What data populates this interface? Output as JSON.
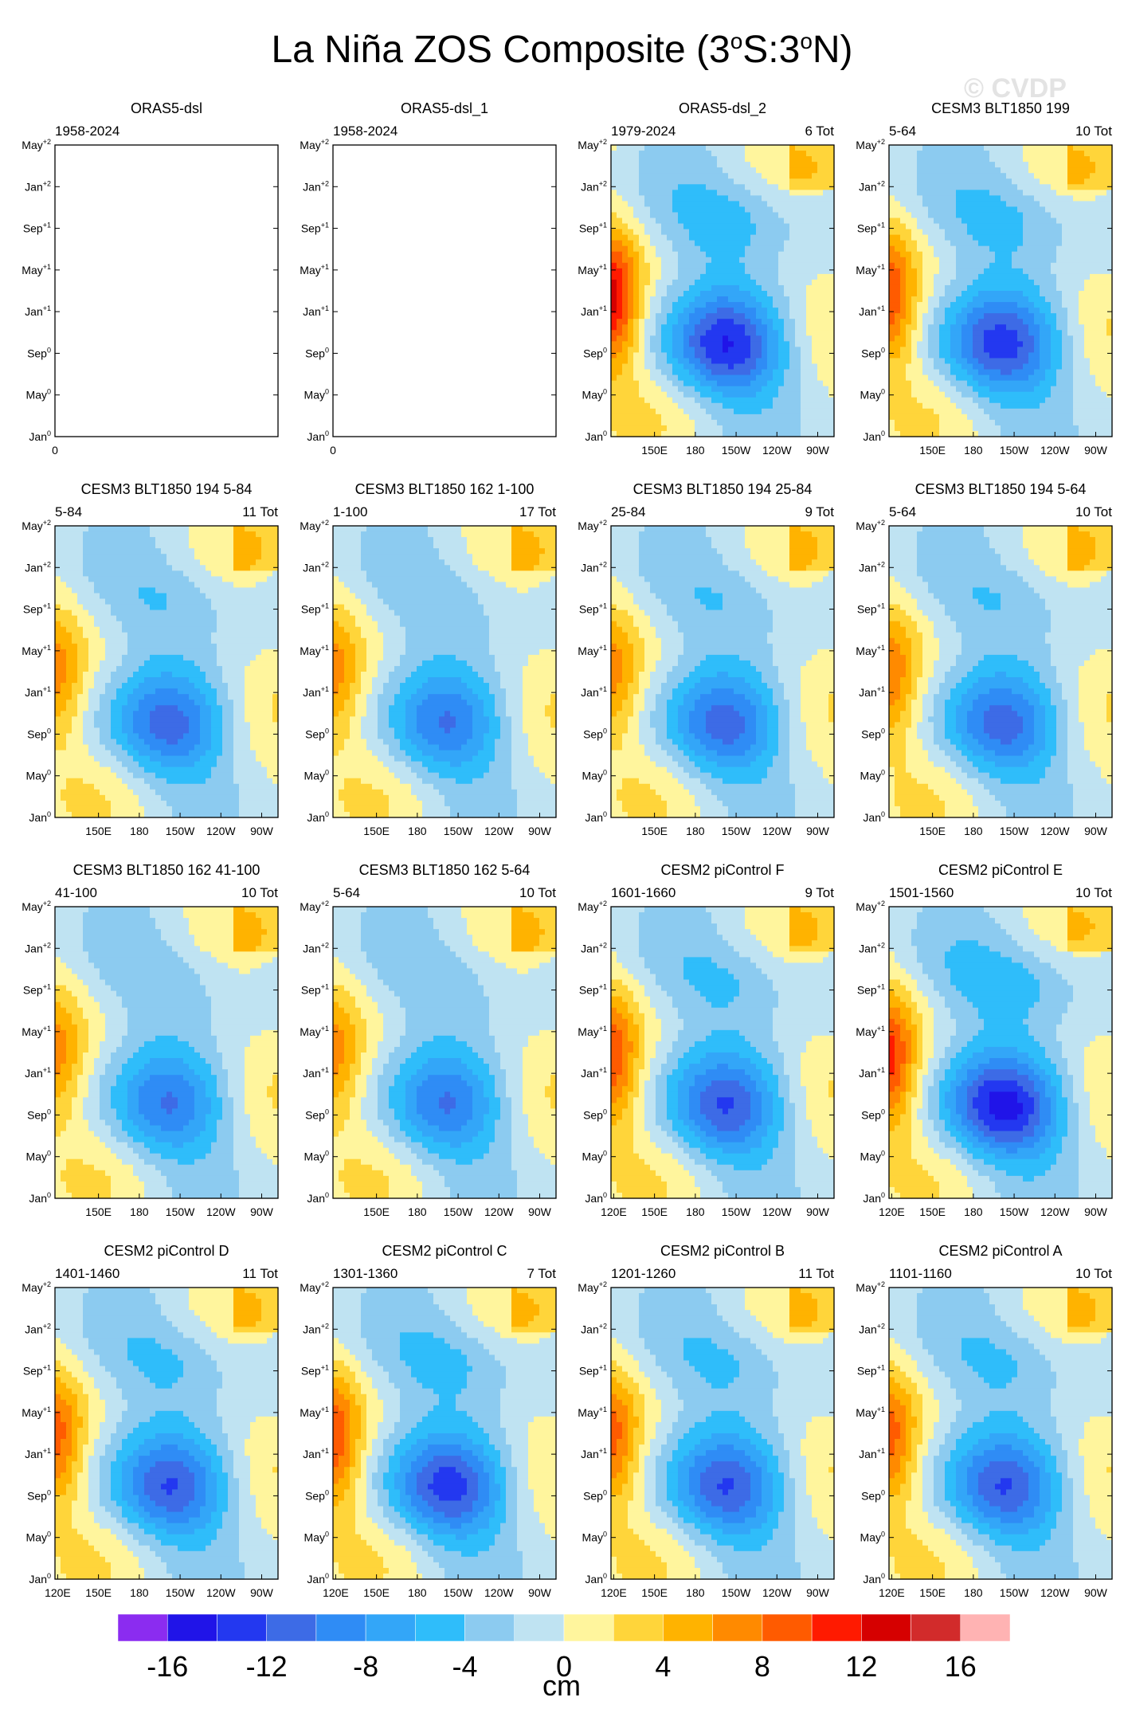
{
  "figure": {
    "title": "La Niña ZOS Composite (3",
    "title_sup1": "o",
    "title_mid": "S:3",
    "title_sup2": "o",
    "title_end": "N)",
    "watermark": "© CVDP",
    "units": "cm"
  },
  "y_ticks": [
    "May+2",
    "Jan+2",
    "Sep+1",
    "May+1",
    "Jan+1",
    "Sep0",
    "May0",
    "Jan0"
  ],
  "x_ticks_full": [
    "120E",
    "150E",
    "180",
    "150W",
    "120W",
    "90W"
  ],
  "x_ticks_short": [
    "150E",
    "180",
    "150W",
    "120W",
    "90W"
  ],
  "empty_xtick": "0",
  "chart_data": {
    "type": "heatmap",
    "description_fields": "Hovmoller composites of sea surface height anomaly, longitude (x) vs month (y)",
    "xlim": [
      "120E",
      "80W"
    ],
    "ylim": [
      "Jan0",
      "May+2"
    ],
    "panels": [
      {
        "title": "ORAS5-dsl",
        "years": "1958-2024",
        "count": "",
        "empty": true,
        "xticks": "zero",
        "intensity": 0,
        "west": 0,
        "transition": 0
      },
      {
        "title": "ORAS5-dsl_1",
        "years": "1958-2024",
        "count": "",
        "empty": true,
        "xticks": "zero",
        "intensity": 0,
        "west": 0,
        "transition": 0
      },
      {
        "title": "ORAS5-dsl_2",
        "years": "1979-2024",
        "count": "6 Tot",
        "empty": false,
        "xticks": "short",
        "intensity": 13,
        "west": 11,
        "transition": 0.2
      },
      {
        "title": "CESM3 BLT1850 199",
        "years": "5-64",
        "count": "10 Tot",
        "empty": false,
        "xticks": "short",
        "intensity": 12,
        "west": 8,
        "transition": 0.35
      },
      {
        "title": "CESM3 BLT1850 194 5-84",
        "years": "5-84",
        "count": "11 Tot",
        "empty": false,
        "xticks": "short",
        "intensity": 10,
        "west": 5,
        "transition": 0.3
      },
      {
        "title": "CESM3 BLT1850 162 1-100",
        "years": "1-100",
        "count": "17 Tot",
        "empty": false,
        "xticks": "short",
        "intensity": 9,
        "west": 5,
        "transition": 0.3
      },
      {
        "title": "CESM3 BLT1850 194 25-84",
        "years": "25-84",
        "count": "9 Tot",
        "empty": false,
        "xticks": "short",
        "intensity": 10,
        "west": 5,
        "transition": 0.3
      },
      {
        "title": "CESM3 BLT1850 194 5-64",
        "years": "5-64",
        "count": "10 Tot",
        "empty": false,
        "xticks": "short",
        "intensity": 10,
        "west": 6,
        "transition": 0.3
      },
      {
        "title": "CESM3 BLT1850 162 41-100",
        "years": "41-100",
        "count": "10 Tot",
        "empty": false,
        "xticks": "short",
        "intensity": 9,
        "west": 5,
        "transition": 0.3
      },
      {
        "title": "CESM3 BLT1850 162 5-64",
        "years": "5-64",
        "count": "10 Tot",
        "empty": false,
        "xticks": "short",
        "intensity": 9,
        "west": 5,
        "transition": 0.3
      },
      {
        "title": "CESM2 piControl F",
        "years": "1601-1660",
        "count": "9 Tot",
        "empty": false,
        "xticks": "full",
        "intensity": 11,
        "west": 8,
        "transition": 0.25
      },
      {
        "title": "CESM2 piControl E",
        "years": "1501-1560",
        "count": "10 Tot",
        "empty": false,
        "xticks": "full",
        "intensity": 14,
        "west": 9,
        "transition": 0.25
      },
      {
        "title": "CESM2 piControl D",
        "years": "1401-1460",
        "count": "11 Tot",
        "empty": false,
        "xticks": "full",
        "intensity": 11,
        "west": 7,
        "transition": 0.2
      },
      {
        "title": "CESM2 piControl C",
        "years": "1301-1360",
        "count": "7 Tot",
        "empty": false,
        "xticks": "full",
        "intensity": 12,
        "west": 8,
        "transition": 0.2
      },
      {
        "title": "CESM2 piControl B",
        "years": "1201-1260",
        "count": "11 Tot",
        "empty": false,
        "xticks": "full",
        "intensity": 11,
        "west": 7,
        "transition": 0.2
      },
      {
        "title": "CESM2 piControl A",
        "years": "1101-1160",
        "count": "10 Tot",
        "empty": false,
        "xticks": "full",
        "intensity": 11,
        "west": 7,
        "transition": 0.2
      }
    ],
    "colorbar": {
      "levels": [
        -16,
        -14,
        -12,
        -10,
        -8,
        -6,
        -4,
        -2,
        0,
        2,
        4,
        6,
        8,
        10,
        12,
        14,
        16
      ],
      "colors": [
        "#8b2cf0",
        "#2014e8",
        "#2338f0",
        "#3d6be6",
        "#2f8cf5",
        "#33a6f8",
        "#2fbdfa",
        "#8ccbf0",
        "#bfe3f2",
        "#fff59d",
        "#ffd53a",
        "#ffb300",
        "#ff8a00",
        "#ff5b00",
        "#ff1a00",
        "#d60000",
        "#d22b2b",
        "#ffb3b3"
      ],
      "labels": [
        "-16",
        "-12",
        "-8",
        "-4",
        "0",
        "4",
        "8",
        "12",
        "16"
      ],
      "label_values": [
        -16,
        -12,
        -8,
        -4,
        0,
        4,
        8,
        12,
        16
      ]
    }
  }
}
